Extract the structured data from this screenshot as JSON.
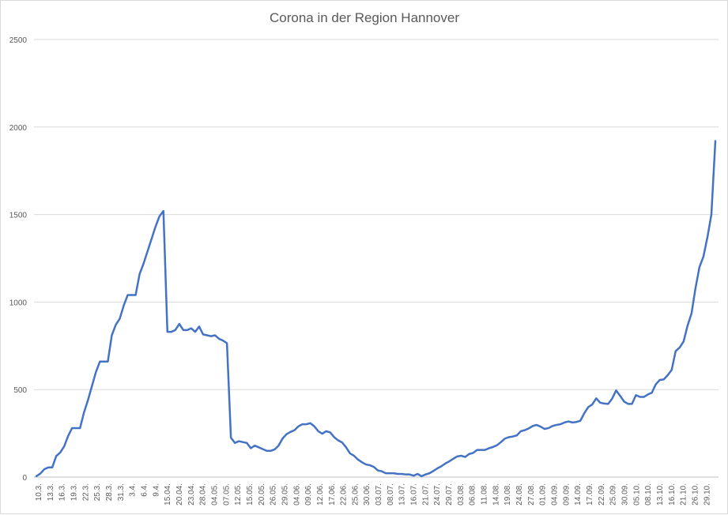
{
  "chart_data": {
    "type": "line",
    "title": "Corona in der Region Hannover",
    "xlabel": "",
    "ylabel": "",
    "ylim": [
      0,
      2500
    ],
    "y_ticks": [
      0,
      500,
      1000,
      1500,
      2000,
      2500
    ],
    "grid": true,
    "legend": "none",
    "x_tick_labels": [
      "10.3.",
      "13.3.",
      "16.3.",
      "19.3.",
      "22.3.",
      "25.3.",
      "28.3.",
      "31.3.",
      "3.4.",
      "6.4.",
      "9.4.",
      "15.04.",
      "20.04.",
      "23.04.",
      "28.04.",
      "04.05.",
      "07.05.",
      "12.05.",
      "15.05.",
      "20.05.",
      "26.05.",
      "29.05.",
      "04.06.",
      "09.06.",
      "12.06.",
      "17.06.",
      "22.06.",
      "25.06.",
      "30.06.",
      "03.07.",
      "08.07.",
      "13.07.",
      "16.07.",
      "21.07.",
      "24.07.",
      "29.07.",
      "03.08.",
      "06.08.",
      "11.08.",
      "14.08.",
      "19.08.",
      "24.08.",
      "27.08.",
      "01.09.",
      "04.09.",
      "09.09.",
      "14.09.",
      "17.09.",
      "22.09.",
      "25.09.",
      "30.09.",
      "05.10.",
      "08.10.",
      "13.10.",
      "16.10.",
      "21.10.",
      "26.10.",
      "29.10."
    ],
    "series": [
      {
        "color": "#4472c4",
        "values": [
          5,
          20,
          45,
          55,
          55,
          120,
          140,
          175,
          235,
          280,
          280,
          280,
          370,
          440,
          520,
          600,
          660,
          660,
          660,
          810,
          870,
          905,
          980,
          1040,
          1040,
          1040,
          1160,
          1220,
          1290,
          1360,
          1430,
          1490,
          1520,
          830,
          830,
          840,
          875,
          840,
          840,
          850,
          830,
          860,
          815,
          810,
          805,
          810,
          790,
          780,
          765,
          225,
          195,
          205,
          200,
          195,
          165,
          180,
          170,
          160,
          150,
          150,
          158,
          180,
          220,
          245,
          258,
          268,
          290,
          302,
          302,
          308,
          290,
          262,
          248,
          262,
          255,
          228,
          210,
          198,
          170,
          135,
          122,
          100,
          85,
          72,
          68,
          58,
          38,
          33,
          22,
          22,
          22,
          18,
          18,
          15,
          15,
          8,
          18,
          5,
          15,
          22,
          35,
          50,
          62,
          78,
          90,
          105,
          118,
          122,
          115,
          132,
          138,
          155,
          155,
          155,
          165,
          172,
          182,
          200,
          220,
          228,
          232,
          238,
          262,
          268,
          278,
          292,
          298,
          288,
          275,
          280,
          292,
          298,
          302,
          312,
          318,
          312,
          315,
          322,
          365,
          400,
          415,
          450,
          425,
          420,
          418,
          448,
          495,
          465,
          432,
          418,
          418,
          468,
          458,
          458,
          472,
          482,
          530,
          555,
          558,
          582,
          612,
          720,
          740,
          775,
          865,
          935,
          1080,
          1200,
          1260,
          1370,
          1500,
          1920
        ]
      }
    ]
  }
}
